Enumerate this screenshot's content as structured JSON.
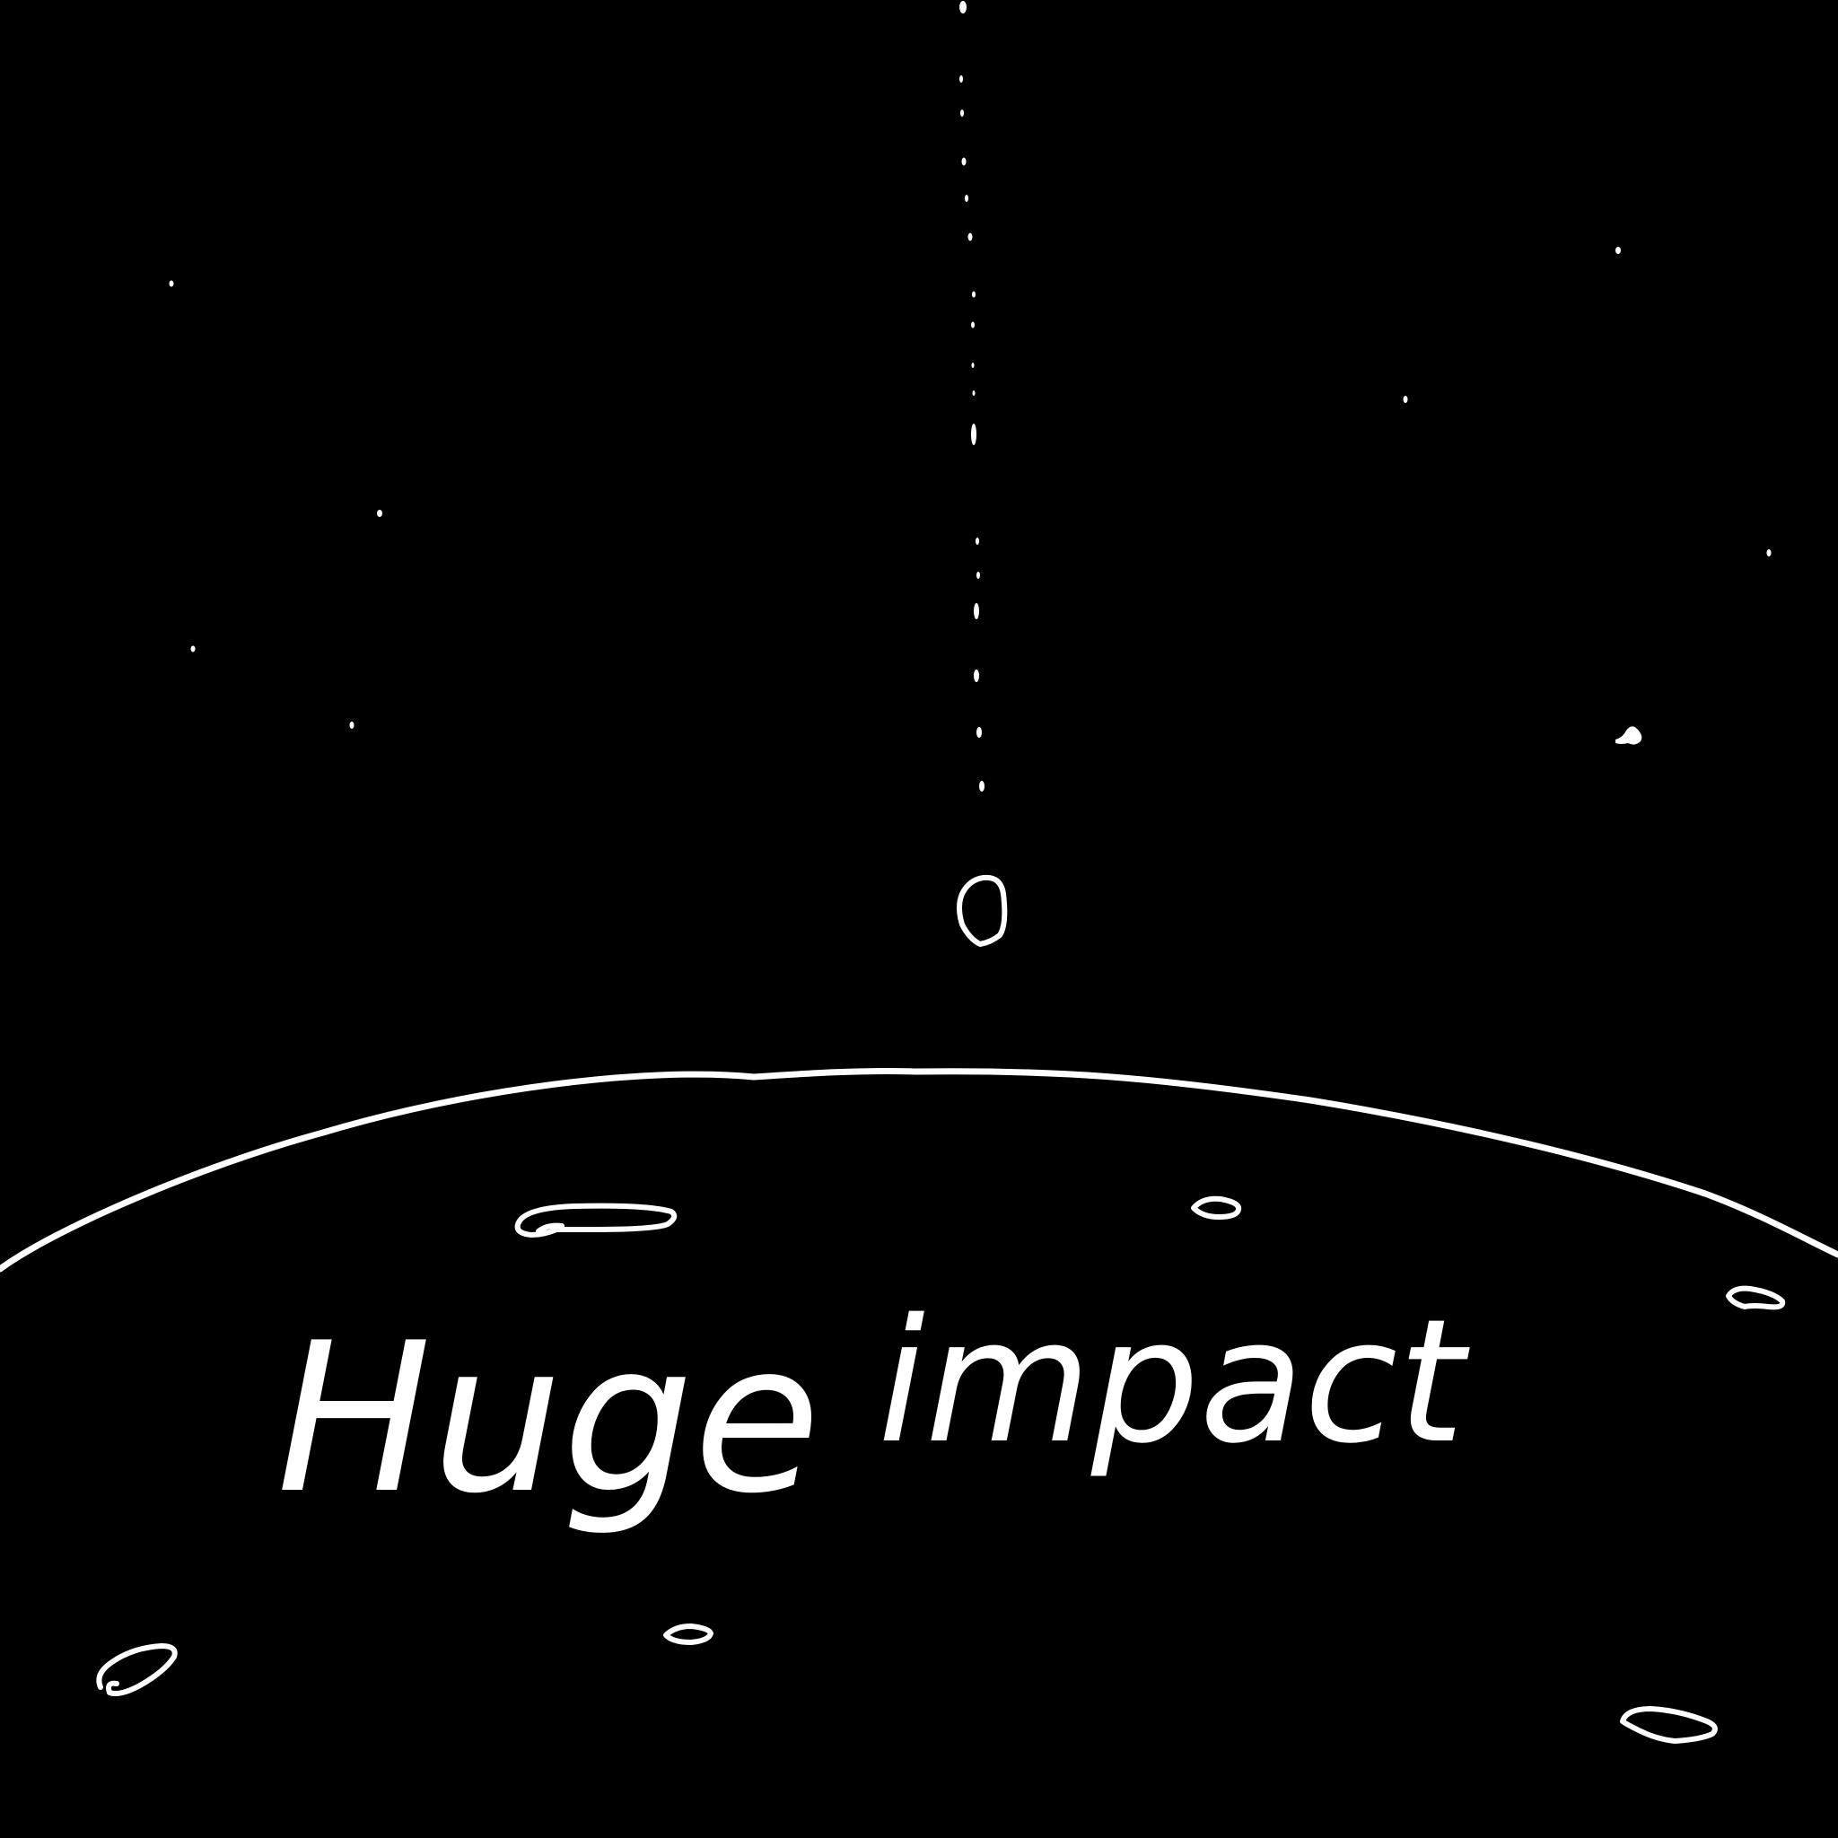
{
  "caption": {
    "word_1": "Huge",
    "word_2": "impact"
  },
  "colors": {
    "background": "#000000",
    "ink": "#ffffff"
  },
  "icons": {
    "falling_object": "meteor-icon",
    "trail": "dotted-trail-icon",
    "surface": "planet-horizon-icon",
    "craters": "crater-icon",
    "stars": "star-icon"
  }
}
